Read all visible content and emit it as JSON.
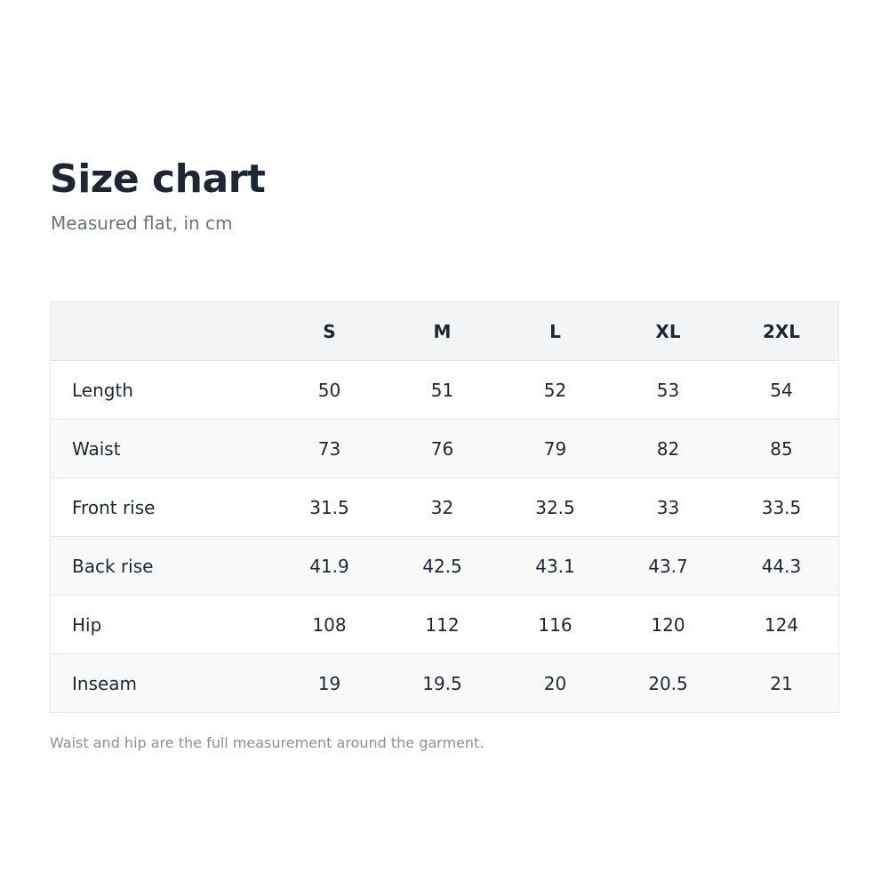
{
  "header": {
    "title": "Size chart",
    "subtitle": "Measured flat, in cm"
  },
  "table": {
    "columns": [
      "S",
      "M",
      "L",
      "XL",
      "2XL"
    ],
    "rows": [
      {
        "label": "Length",
        "values": [
          50,
          51,
          52,
          53,
          54
        ]
      },
      {
        "label": "Waist",
        "values": [
          73,
          76,
          79,
          82,
          85
        ]
      },
      {
        "label": "Front rise",
        "values": [
          31.5,
          32,
          32.5,
          33,
          33.5
        ]
      },
      {
        "label": "Back rise",
        "values": [
          41.9,
          42.5,
          43.1,
          43.7,
          44.3
        ]
      },
      {
        "label": "Hip",
        "values": [
          108,
          112,
          116,
          120,
          124
        ]
      },
      {
        "label": "Inseam",
        "values": [
          19,
          19.5,
          20,
          20.5,
          21
        ]
      }
    ]
  },
  "footnote": "Waist and hip are the full measurement around the garment."
}
